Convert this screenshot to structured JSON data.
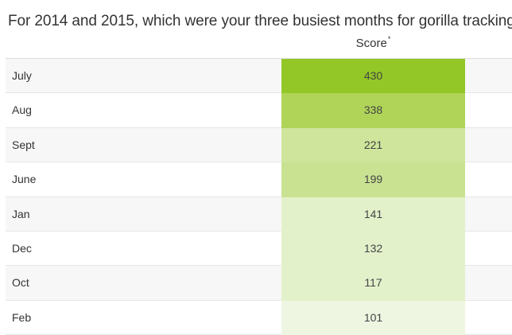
{
  "title": "For 2014 and 2015, which were your three busiest months for gorilla tracking?",
  "chart_data": {
    "type": "table",
    "column_header": "Score",
    "column_header_mark": "*",
    "rows": [
      {
        "label": "July",
        "value": 430,
        "color": "#93c727"
      },
      {
        "label": "Aug",
        "value": 338,
        "color": "#afd458"
      },
      {
        "label": "Sept",
        "value": 221,
        "color": "#cee59b"
      },
      {
        "label": "June",
        "value": 199,
        "color": "#c9e292"
      },
      {
        "label": "Jan",
        "value": 141,
        "color": "#e3f1cb"
      },
      {
        "label": "Dec",
        "value": 132,
        "color": "#e3f1cb"
      },
      {
        "label": "Oct",
        "value": 117,
        "color": "#e3f1cb"
      },
      {
        "label": "Feb",
        "value": 101,
        "color": "#eef6e2"
      }
    ]
  }
}
